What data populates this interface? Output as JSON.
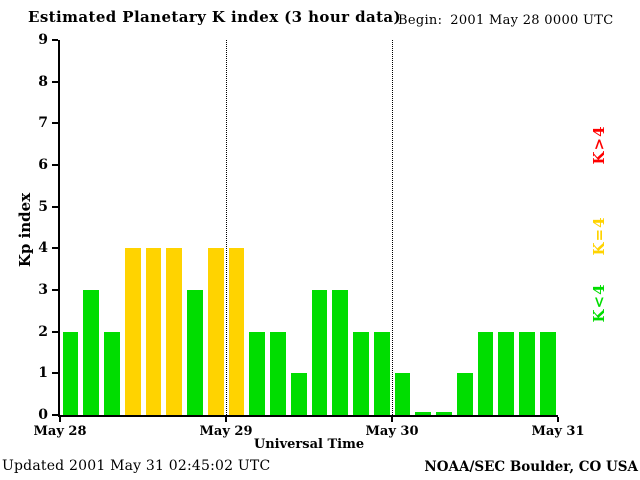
{
  "chart_data": {
    "type": "bar",
    "title": "Estimated Planetary K index (3 hour data)",
    "begin_label": "Begin:",
    "begin_value": "2001 May 28 0000 UTC",
    "xlabel": "Universal Time",
    "ylabel": "Kp index",
    "ylim": [
      0,
      9
    ],
    "yticks": [
      0,
      1,
      2,
      3,
      4,
      5,
      6,
      7,
      8,
      9
    ],
    "day_ticks": [
      "May 28",
      "May 29",
      "May 30",
      "May 31"
    ],
    "bars_per_day": 8,
    "values": [
      2,
      3,
      2,
      4,
      4,
      4,
      3,
      4,
      4,
      2,
      2,
      1,
      3,
      3,
      2,
      2,
      1,
      0,
      0,
      1,
      2,
      2,
      2,
      2
    ],
    "vlines_at_day_ticks": [
      "May 29",
      "May 30"
    ],
    "legend": [
      {
        "label": "K>4",
        "color": "#ff0000"
      },
      {
        "label": "K=4",
        "color": "#ffd300"
      },
      {
        "label": "K<4",
        "color": "#00dd00"
      }
    ],
    "colors": {
      "k_gt4": "#ff0000",
      "k_eq4": "#ffd300",
      "k_lt4": "#00dd00",
      "axis": "#000000",
      "background": "#ffffff"
    },
    "footer": {
      "updated": "Updated 2001 May 31 02:45:02 UTC",
      "credit": "NOAA/SEC Boulder, CO USA"
    }
  }
}
